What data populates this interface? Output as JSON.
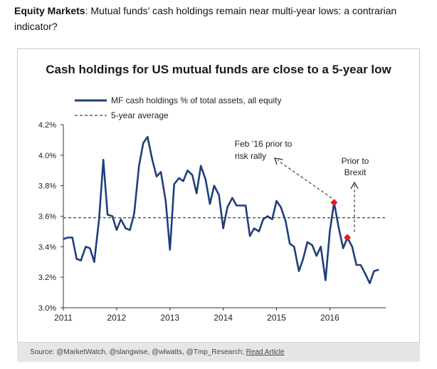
{
  "header": {
    "bold": "Equity Markets",
    "rest": ": Mutual funds’ cash holdings remain near multi-year lows: a contrarian indicator?"
  },
  "source": {
    "prefix": "Source: @MarketWatch, @slangwise, @wlwatts, @Tmp_Research; ",
    "link": "Read Article"
  },
  "colors": {
    "line": "#1f3f7a",
    "marker": "#e8191f",
    "avg": "#444444",
    "axis": "#333333"
  },
  "chart_data": {
    "type": "line",
    "title": "Cash holdings for US mutual funds are close to a 5-year low",
    "legend": [
      "MF cash holdings % of total assets, all equity",
      "5-year average"
    ],
    "legend_position": "top-left",
    "x_ticks": [
      "2011",
      "2012",
      "2013",
      "2014",
      "2015",
      "2016"
    ],
    "y_ticks": [
      "3.0%",
      "3.2%",
      "3.4%",
      "3.6%",
      "3.8%",
      "4.0%",
      "4.2%"
    ],
    "xlim": [
      2011.0,
      2017.05
    ],
    "ylim": [
      3.0,
      4.2
    ],
    "grid": false,
    "average": 3.59,
    "series": [
      {
        "name": "MF cash holdings % of total assets, all equity",
        "x": [
          2011.0,
          2011.08,
          2011.17,
          2011.25,
          2011.33,
          2011.42,
          2011.5,
          2011.58,
          2011.67,
          2011.75,
          2011.83,
          2011.92,
          2012.0,
          2012.08,
          2012.17,
          2012.25,
          2012.33,
          2012.42,
          2012.5,
          2012.58,
          2012.67,
          2012.75,
          2012.83,
          2012.92,
          2013.0,
          2013.08,
          2013.17,
          2013.25,
          2013.33,
          2013.42,
          2013.5,
          2013.58,
          2013.67,
          2013.75,
          2013.83,
          2013.92,
          2014.0,
          2014.08,
          2014.17,
          2014.25,
          2014.33,
          2014.42,
          2014.5,
          2014.58,
          2014.67,
          2014.75,
          2014.83,
          2014.92,
          2015.0,
          2015.08,
          2015.17,
          2015.25,
          2015.33,
          2015.42,
          2015.5,
          2015.58,
          2015.67,
          2015.75,
          2015.83,
          2015.92,
          2016.0,
          2016.08,
          2016.17,
          2016.25,
          2016.33,
          2016.42,
          2016.5,
          2016.58,
          2016.67,
          2016.75,
          2016.83,
          2016.92
        ],
        "y": [
          3.45,
          3.46,
          3.46,
          3.32,
          3.31,
          3.4,
          3.39,
          3.3,
          3.58,
          3.97,
          3.61,
          3.6,
          3.51,
          3.58,
          3.52,
          3.51,
          3.62,
          3.93,
          4.08,
          4.12,
          3.97,
          3.86,
          3.89,
          3.7,
          3.38,
          3.81,
          3.85,
          3.83,
          3.9,
          3.87,
          3.75,
          3.93,
          3.84,
          3.68,
          3.8,
          3.74,
          3.52,
          3.66,
          3.72,
          3.67,
          3.67,
          3.67,
          3.47,
          3.52,
          3.5,
          3.58,
          3.6,
          3.58,
          3.7,
          3.66,
          3.57,
          3.42,
          3.4,
          3.24,
          3.32,
          3.43,
          3.41,
          3.34,
          3.4,
          3.18,
          3.5,
          3.69,
          3.52,
          3.39,
          3.46,
          3.4,
          3.28,
          3.28,
          3.22,
          3.16,
          3.24,
          3.25
        ]
      }
    ],
    "highlights": [
      {
        "x": 2016.08,
        "y": 3.69,
        "label": "Feb ’16 prior to risk rally"
      },
      {
        "x": 2016.33,
        "y": 3.46,
        "label": "Prior to Brexit"
      }
    ],
    "annotations": {
      "feb_line1": "Feb ’16 prior to",
      "feb_line2": "risk rally",
      "brexit_line1": "Prior to",
      "brexit_line2": "Brexit"
    }
  }
}
